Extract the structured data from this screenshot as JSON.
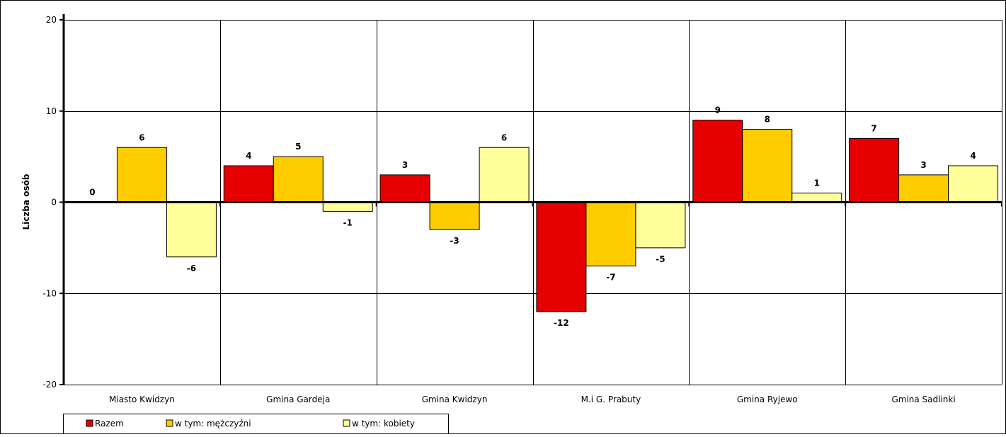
{
  "chart_data": {
    "type": "bar",
    "ylabel": "Liczba osób",
    "xlabel": "",
    "ylim": [
      -20,
      20
    ],
    "yticks": [
      -20,
      -10,
      0,
      10,
      20
    ],
    "grid": "horizontal and vertical",
    "legend_position": "bottom-left",
    "categories": [
      "Miasto Kwidzyn",
      "Gmina Gardeja",
      "Gmina Kwidzyn",
      "M.i G. Prabuty",
      "Gmina Ryjewo",
      "Gmina Sadlinki"
    ],
    "series": [
      {
        "name": "Razem",
        "color": "#e60000",
        "values": [
          0,
          4,
          3,
          -12,
          9,
          7
        ]
      },
      {
        "name": "w tym: mężczyźni",
        "color": "#ffcc00",
        "values": [
          6,
          5,
          -3,
          -7,
          8,
          3
        ]
      },
      {
        "name": "w tym: kobiety",
        "color": "#ffff99",
        "values": [
          -6,
          -1,
          6,
          -5,
          1,
          4
        ]
      }
    ]
  }
}
